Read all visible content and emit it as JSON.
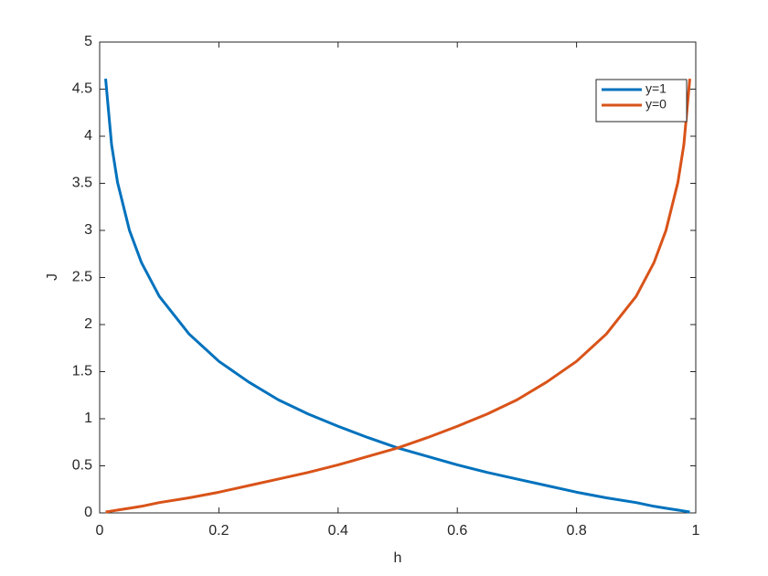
{
  "chart_data": {
    "type": "line",
    "xlabel": "h",
    "ylabel": "J",
    "x": [
      0.01,
      0.02,
      0.03,
      0.05,
      0.07,
      0.1,
      0.15,
      0.2,
      0.25,
      0.3,
      0.35,
      0.4,
      0.45,
      0.5,
      0.55,
      0.6,
      0.65,
      0.7,
      0.75,
      0.8,
      0.85,
      0.9,
      0.93,
      0.95,
      0.97,
      0.98,
      0.99
    ],
    "series": [
      {
        "name": "y=1",
        "color": "#0072BD",
        "values": [
          4.61,
          3.91,
          3.51,
          3.0,
          2.66,
          2.3,
          1.9,
          1.61,
          1.39,
          1.2,
          1.05,
          0.92,
          0.8,
          0.69,
          0.6,
          0.51,
          0.43,
          0.36,
          0.29,
          0.22,
          0.16,
          0.11,
          0.07,
          0.05,
          0.03,
          0.02,
          0.01
        ]
      },
      {
        "name": "y=0",
        "color": "#D95319",
        "values": [
          0.01,
          0.02,
          0.03,
          0.05,
          0.07,
          0.11,
          0.16,
          0.22,
          0.29,
          0.36,
          0.43,
          0.51,
          0.6,
          0.69,
          0.8,
          0.92,
          1.05,
          1.2,
          1.39,
          1.61,
          1.9,
          2.3,
          2.66,
          3.0,
          3.51,
          3.91,
          4.61
        ]
      }
    ],
    "xlim": [
      0,
      1
    ],
    "xticks": [
      0,
      0.2,
      0.4,
      0.6,
      0.8,
      1
    ],
    "ylim": [
      0,
      5
    ],
    "yticks": [
      0,
      0.5,
      1,
      1.5,
      2,
      2.5,
      3,
      3.5,
      4,
      4.5,
      5
    ],
    "grid": false,
    "legend": "northeast"
  }
}
